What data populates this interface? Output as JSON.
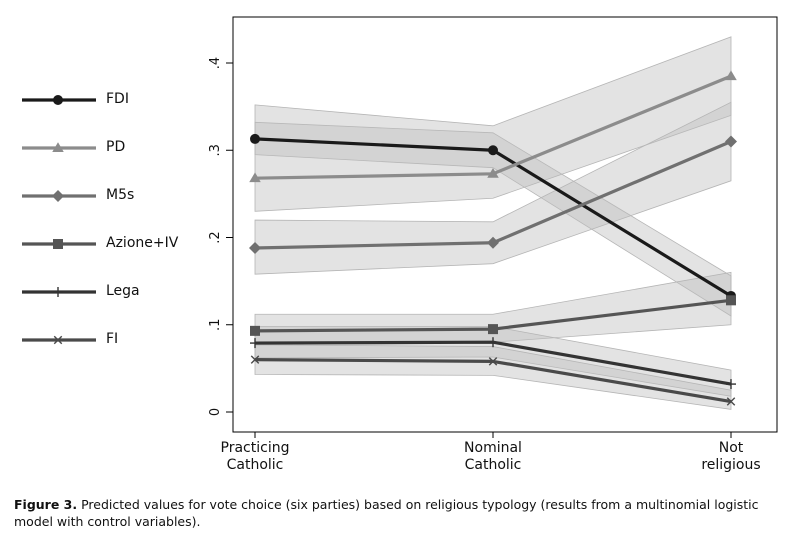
{
  "chart_data": {
    "type": "line",
    "categories": [
      "Practicing Catholic",
      "Nominal Catholic",
      "Not religious"
    ],
    "category_lines": [
      [
        "Practicing",
        "Catholic"
      ],
      [
        "Nominal",
        "Catholic"
      ],
      [
        "Not",
        "religious"
      ]
    ],
    "ylim": [
      0,
      0.43
    ],
    "yticks": [
      0,
      0.1,
      0.2,
      0.3,
      0.4
    ],
    "ytick_labels": [
      "0",
      ".1",
      ".2",
      ".3",
      ".4"
    ],
    "grid": false,
    "legend_position": "left",
    "series": [
      {
        "name": "FDI",
        "marker": "circle",
        "color": "#1a1a1a",
        "values": [
          0.313,
          0.3,
          0.133
        ],
        "ci_low": [
          0.295,
          0.28,
          0.11
        ],
        "ci_high": [
          0.332,
          0.32,
          0.156
        ]
      },
      {
        "name": "PD",
        "marker": "triangle",
        "color": "#8c8c8c",
        "values": [
          0.268,
          0.273,
          0.385
        ],
        "ci_low": [
          0.23,
          0.245,
          0.34
        ],
        "ci_high": [
          0.352,
          0.328,
          0.43
        ]
      },
      {
        "name": "M5s",
        "marker": "diamond",
        "color": "#707070",
        "values": [
          0.188,
          0.194,
          0.31
        ],
        "ci_low": [
          0.158,
          0.17,
          0.265
        ],
        "ci_high": [
          0.22,
          0.218,
          0.355
        ]
      },
      {
        "name": "Azione+IV",
        "marker": "square",
        "color": "#555555",
        "values": [
          0.093,
          0.095,
          0.128
        ],
        "ci_low": [
          0.078,
          0.08,
          0.1
        ],
        "ci_high": [
          0.112,
          0.112,
          0.16
        ]
      },
      {
        "name": "Lega",
        "marker": "plus",
        "color": "#333333",
        "values": [
          0.079,
          0.08,
          0.032
        ],
        "ci_low": [
          0.062,
          0.063,
          0.018
        ],
        "ci_high": [
          0.098,
          0.098,
          0.048
        ]
      },
      {
        "name": "FI",
        "marker": "x",
        "color": "#4a4a4a",
        "values": [
          0.06,
          0.058,
          0.012
        ],
        "ci_low": [
          0.043,
          0.042,
          0.003
        ],
        "ci_high": [
          0.077,
          0.075,
          0.025
        ]
      }
    ]
  },
  "caption": {
    "label": "Figure 3.",
    "text": "Predicted values for vote choice (six parties) based on religious typology (results from a multinomial logistic model with control variables)."
  }
}
